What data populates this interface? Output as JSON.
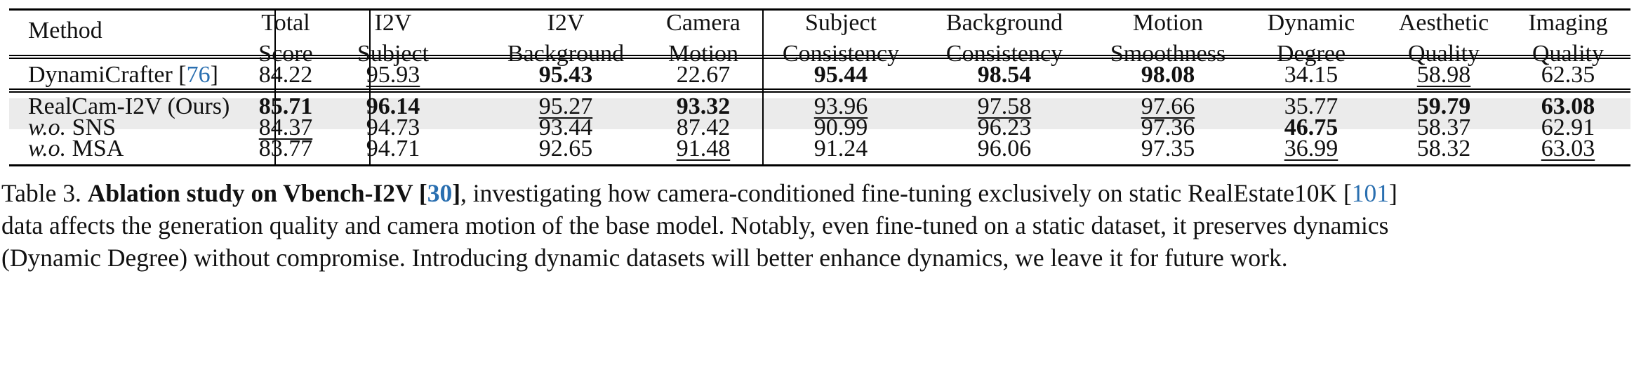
{
  "table": {
    "columns": [
      {
        "key": "method",
        "lines": [
          "Method"
        ]
      },
      {
        "key": "total",
        "lines": [
          "Total",
          "Score"
        ]
      },
      {
        "key": "i2v_subject",
        "lines": [
          "I2V",
          "Subject"
        ]
      },
      {
        "key": "i2v_background",
        "lines": [
          "I2V",
          "Background"
        ]
      },
      {
        "key": "camera_motion",
        "lines": [
          "Camera",
          "Motion"
        ]
      },
      {
        "key": "subject_consistency",
        "lines": [
          "Subject",
          "Consistency"
        ]
      },
      {
        "key": "background_consistency",
        "lines": [
          "Background",
          "Consistency"
        ]
      },
      {
        "key": "motion_smoothness",
        "lines": [
          "Motion",
          "Smoothness"
        ]
      },
      {
        "key": "dynamic_degree",
        "lines": [
          "Dynamic",
          "Degree"
        ]
      },
      {
        "key": "aesthetic_quality",
        "lines": [
          "Aesthetic",
          "Quality"
        ]
      },
      {
        "key": "imaging_quality",
        "lines": [
          "Imaging",
          "Quality"
        ]
      }
    ],
    "rows": [
      {
        "method": {
          "prefix": "DynamiCrafter [",
          "cite": "76",
          "suffix": "]"
        },
        "cells": [
          {
            "v": "84.22",
            "s": ""
          },
          {
            "v": "95.93",
            "s": "u"
          },
          {
            "v": "95.43",
            "s": "b"
          },
          {
            "v": "22.67",
            "s": ""
          },
          {
            "v": "95.44",
            "s": "b"
          },
          {
            "v": "98.54",
            "s": "b"
          },
          {
            "v": "98.08",
            "s": "b"
          },
          {
            "v": "34.15",
            "s": ""
          },
          {
            "v": "58.98",
            "s": "u"
          },
          {
            "v": "62.35",
            "s": ""
          }
        ]
      },
      {
        "method": {
          "prefix": "RealCam-I2V (Ours)"
        },
        "highlighted": true,
        "cells": [
          {
            "v": "85.71",
            "s": "b"
          },
          {
            "v": "96.14",
            "s": "b"
          },
          {
            "v": "95.27",
            "s": "u"
          },
          {
            "v": "93.32",
            "s": "b"
          },
          {
            "v": "93.96",
            "s": "u"
          },
          {
            "v": "97.58",
            "s": "u"
          },
          {
            "v": "97.66",
            "s": "u"
          },
          {
            "v": "35.77",
            "s": ""
          },
          {
            "v": "59.79",
            "s": "b"
          },
          {
            "v": "63.08",
            "s": "b"
          }
        ]
      },
      {
        "method": {
          "italic": "w.o.",
          "prefix": " SNS"
        },
        "cells": [
          {
            "v": "84.37",
            "s": "u"
          },
          {
            "v": "94.73",
            "s": ""
          },
          {
            "v": "93.44",
            "s": ""
          },
          {
            "v": "87.42",
            "s": ""
          },
          {
            "v": "90.99",
            "s": ""
          },
          {
            "v": "96.23",
            "s": ""
          },
          {
            "v": "97.36",
            "s": ""
          },
          {
            "v": "46.75",
            "s": "b"
          },
          {
            "v": "58.37",
            "s": ""
          },
          {
            "v": "62.91",
            "s": ""
          }
        ]
      },
      {
        "method": {
          "italic": "w.o.",
          "prefix": " MSA"
        },
        "cells": [
          {
            "v": "83.77",
            "s": ""
          },
          {
            "v": "94.71",
            "s": ""
          },
          {
            "v": "92.65",
            "s": ""
          },
          {
            "v": "91.48",
            "s": "u"
          },
          {
            "v": "91.24",
            "s": ""
          },
          {
            "v": "96.06",
            "s": ""
          },
          {
            "v": "97.35",
            "s": ""
          },
          {
            "v": "36.99",
            "s": "u"
          },
          {
            "v": "58.32",
            "s": ""
          },
          {
            "v": "63.03",
            "s": "u"
          }
        ]
      }
    ]
  },
  "caption": {
    "label": "Table 3. ",
    "bold_title": "Ablation study on Vbench-I2V [",
    "bold_cite": "30",
    "bold_close": "]",
    "line1_rest_a": ", investigating how camera-conditioned fine-tuning exclusively on static RealEstate10K [",
    "line1_cite": "101",
    "line1_rest_b": "]",
    "line2": "data affects the generation quality and camera motion of the base model. Notably, even fine-tuned on a static dataset, it preserves dynamics",
    "line3": "(Dynamic Degree) without compromise. Introducing dynamic datasets will better enhance dynamics, we leave it for future work."
  },
  "colors": {
    "citation": "#2a6fb0",
    "highlight_row": "#ebebeb",
    "text": "#111111"
  }
}
